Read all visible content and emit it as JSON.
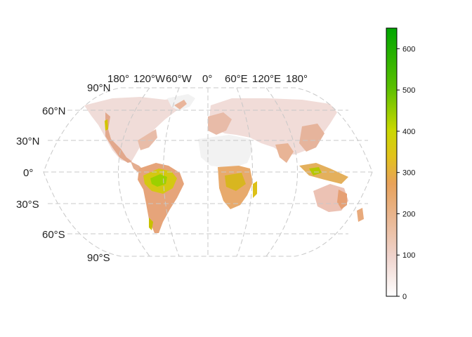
{
  "map": {
    "projection": "Robinson",
    "lon_labels": [
      "180°",
      "120°W",
      "60°W",
      "0°",
      "60°E",
      "120°E",
      "180°"
    ],
    "lat_labels": [
      "90°N",
      "60°N",
      "30°N",
      "0°",
      "30°S",
      "60°S",
      "90°S"
    ],
    "colormap": [
      "#f2f2f2",
      "#eabdaa",
      "#e8a060",
      "#e6c000",
      "#7fcc00",
      "#00a600"
    ]
  },
  "legend": {
    "ticks": [
      "0",
      "100",
      "200",
      "300",
      "400",
      "500",
      "600"
    ],
    "min": 0,
    "max": 650
  }
}
